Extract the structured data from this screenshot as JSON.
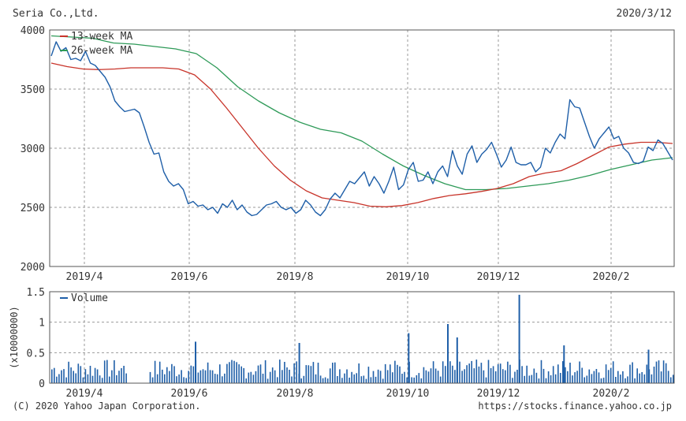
{
  "header": {
    "company": "Seria Co.,Ltd.",
    "date": "2020/3/12"
  },
  "footer": {
    "copyright": "(C) 2020 Yahoo Japan Corporation.",
    "url": "https://stocks.finance.yahoo.co.jp"
  },
  "colors": {
    "price": "#1f5fa8",
    "ma13": "#c8342a",
    "ma26": "#2e9a58",
    "volume": "#1f5fa8",
    "grid": "#9a9a9a"
  },
  "chart_data": [
    {
      "type": "line",
      "x_labels": [
        "2019/4",
        "2019/6",
        "2019/8",
        "2019/10",
        "2019/12",
        "2020/2"
      ],
      "ylim": [
        2000,
        4000
      ],
      "yticks": [
        "2000",
        "2500",
        "3000",
        "3500",
        "4000"
      ],
      "legend": [
        "13-week MA",
        "26-week MA"
      ],
      "grid": true,
      "price": [
        3780,
        3900,
        3820,
        3850,
        3750,
        3760,
        3740,
        3820,
        3720,
        3700,
        3650,
        3600,
        3520,
        3400,
        3350,
        3310,
        3320,
        3330,
        3300,
        3180,
        3050,
        2950,
        2960,
        2800,
        2720,
        2680,
        2700,
        2650,
        2530,
        2550,
        2510,
        2520,
        2480,
        2500,
        2450,
        2530,
        2500,
        2560,
        2480,
        2520,
        2460,
        2430,
        2440,
        2480,
        2520,
        2530,
        2550,
        2500,
        2480,
        2500,
        2450,
        2480,
        2560,
        2520,
        2460,
        2430,
        2480,
        2570,
        2620,
        2580,
        2650,
        2720,
        2700,
        2750,
        2800,
        2680,
        2760,
        2700,
        2620,
        2720,
        2840,
        2650,
        2690,
        2820,
        2880,
        2720,
        2730,
        2800,
        2700,
        2800,
        2850,
        2760,
        2980,
        2850,
        2780,
        2950,
        3020,
        2880,
        2950,
        2990,
        3050,
        2950,
        2840,
        2900,
        3010,
        2880,
        2860,
        2860,
        2880,
        2800,
        2840,
        3000,
        2960,
        3050,
        3120,
        3080,
        3410,
        3350,
        3340,
        3220,
        3100,
        3000,
        3080,
        3130,
        3180,
        3080,
        3100,
        3000,
        2960,
        2880,
        2870,
        2890,
        3010,
        2980,
        3070,
        3040,
        2970,
        2900
      ],
      "ma13": [
        3720,
        3690,
        3670,
        3665,
        3670,
        3680,
        3680,
        3680,
        3670,
        3620,
        3500,
        3340,
        3170,
        3000,
        2850,
        2730,
        2640,
        2580,
        2560,
        2540,
        2510,
        2505,
        2515,
        2540,
        2575,
        2600,
        2615,
        2635,
        2660,
        2700,
        2760,
        2790,
        2810,
        2870,
        2940,
        3010,
        3035,
        3050,
        3050,
        3040
      ],
      "ma26": [
        3950,
        3940,
        3930,
        3890,
        3880,
        3860,
        3840,
        3800,
        3680,
        3520,
        3400,
        3300,
        3220,
        3160,
        3130,
        3060,
        2950,
        2850,
        2770,
        2700,
        2650,
        2650,
        2660,
        2680,
        2700,
        2730,
        2770,
        2820,
        2860,
        2900,
        2920
      ],
      "series": [
        {
          "name": "13-week MA",
          "color": "#c8342a"
        },
        {
          "name": "26-week MA",
          "color": "#2e9a58"
        }
      ]
    },
    {
      "type": "bar",
      "x_labels": [
        "2019/4",
        "2019/6",
        "2019/8",
        "2019/10",
        "2019/12",
        "2020/2"
      ],
      "ylabel": "(x10000000)",
      "ylim": [
        0,
        1.5
      ],
      "yticks": [
        "0",
        "0.5",
        "1",
        "1.5"
      ],
      "legend": [
        "Volume"
      ],
      "spikes": [
        {
          "x": 0.231,
          "value": 0.68
        },
        {
          "x": 0.398,
          "value": 0.66
        },
        {
          "x": 0.574,
          "value": 0.82
        },
        {
          "x": 0.637,
          "value": 0.97
        },
        {
          "x": 0.652,
          "value": 0.75
        },
        {
          "x": 0.752,
          "value": 1.45
        },
        {
          "x": 0.824,
          "value": 0.62
        },
        {
          "x": 0.96,
          "value": 0.55
        }
      ]
    }
  ]
}
